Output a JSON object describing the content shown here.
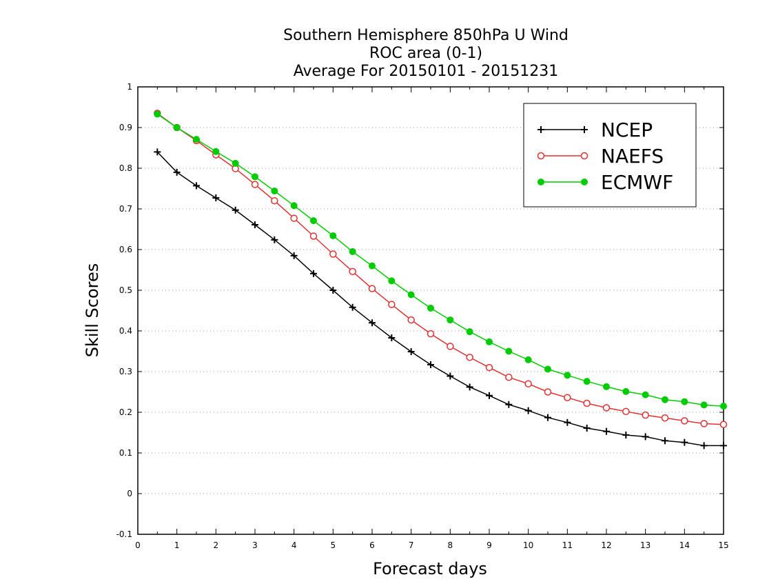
{
  "chart_data": {
    "type": "line",
    "title": [
      "Southern Hemisphere 850hPa U Wind",
      "ROC area (0-1)",
      "Average For 20150101 - 20151231"
    ],
    "xlabel": "Forecast days",
    "ylabel": "Skill Scores",
    "xlim": [
      0,
      15
    ],
    "ylim": [
      -0.1,
      1
    ],
    "x_ticks": [
      "0",
      "1",
      "2",
      "3",
      "4",
      "5",
      "6",
      "7",
      "8",
      "9",
      "10",
      "11",
      "12",
      "13",
      "14",
      "15"
    ],
    "y_ticks": [
      "-0.1",
      "0",
      "0.1",
      "0.2",
      "0.3",
      "0.4",
      "0.5",
      "0.6",
      "0.7",
      "0.8",
      "0.9",
      "1"
    ],
    "grid": "horizontal dotted",
    "legend_position": "top-right",
    "x": [
      0.5,
      1,
      1.5,
      2,
      2.5,
      3,
      3.5,
      4,
      4.5,
      5,
      5.5,
      6,
      6.5,
      7,
      7.5,
      8,
      8.5,
      9,
      9.5,
      10,
      10.5,
      11,
      11.5,
      12,
      12.5,
      13,
      13.5,
      14,
      14.5,
      15
    ],
    "series": [
      {
        "name": "NCEP",
        "color": "#000000",
        "marker": "plus",
        "values": [
          0.84,
          0.79,
          0.757,
          0.727,
          0.697,
          0.661,
          0.624,
          0.585,
          0.541,
          0.5,
          0.458,
          0.42,
          0.383,
          0.349,
          0.317,
          0.289,
          0.262,
          0.241,
          0.219,
          0.204,
          0.187,
          0.175,
          0.161,
          0.153,
          0.144,
          0.14,
          0.13,
          0.126,
          0.118,
          0.118
        ]
      },
      {
        "name": "NAEFS",
        "color": "#e03030",
        "marker": "open-circle",
        "values": [
          0.935,
          0.9,
          0.868,
          0.833,
          0.799,
          0.76,
          0.72,
          0.677,
          0.633,
          0.589,
          0.546,
          0.504,
          0.465,
          0.427,
          0.393,
          0.362,
          0.335,
          0.31,
          0.286,
          0.27,
          0.25,
          0.236,
          0.222,
          0.211,
          0.202,
          0.193,
          0.186,
          0.179,
          0.172,
          0.17
        ]
      },
      {
        "name": "ECMWF",
        "color": "#00cc00",
        "marker": "filled-circle",
        "values": [
          0.933,
          0.9,
          0.871,
          0.841,
          0.812,
          0.779,
          0.744,
          0.708,
          0.671,
          0.634,
          0.595,
          0.56,
          0.523,
          0.489,
          0.456,
          0.427,
          0.398,
          0.373,
          0.35,
          0.329,
          0.306,
          0.291,
          0.276,
          0.263,
          0.251,
          0.243,
          0.231,
          0.226,
          0.218,
          0.215
        ]
      }
    ]
  }
}
